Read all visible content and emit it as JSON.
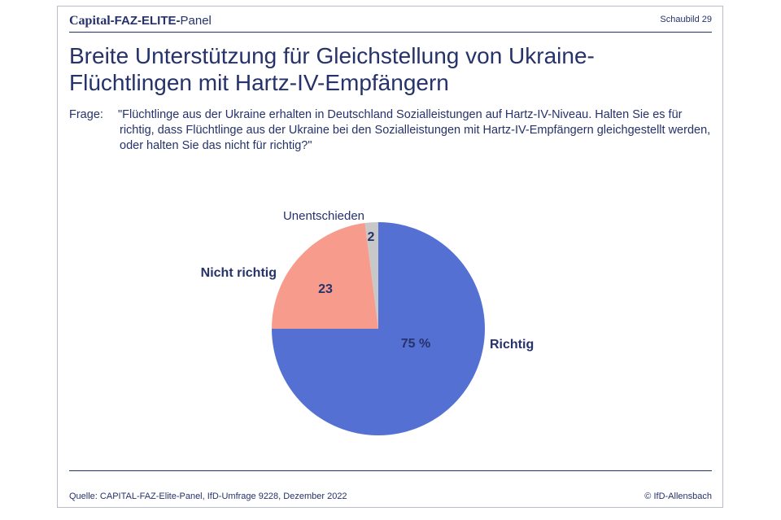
{
  "header": {
    "brand_capital": "Capital",
    "brand_faz": "-FAZ-ELITE-",
    "brand_panel": "Panel",
    "slide_number": "Schaubild 29"
  },
  "title": {
    "line1": "Breite Unterstützung für Gleichstellung von Ukraine-",
    "line2": "Flüchtlingen mit Hartz-IV-Empfängern"
  },
  "question": {
    "prefix": "Frage:",
    "text": "\"Flüchtlinge aus der Ukraine erhalten in Deutschland Sozialleistungen auf Hartz-IV-Niveau. Halten Sie es für richtig, dass Flüchtlinge aus der Ukraine bei den Sozialleistungen mit Hartz-IV-Empfängern gleichgestellt werden, oder halten Sie das nicht für richtig?\""
  },
  "chart_data": {
    "type": "pie",
    "unit": "%",
    "slices": [
      {
        "label": "Richtig",
        "value": 75,
        "value_label": "75 %",
        "color": "#5470d3"
      },
      {
        "label": "Nicht richtig",
        "value": 23,
        "value_label": "23",
        "color": "#f79c8d"
      },
      {
        "label": "Unentschieden",
        "value": 2,
        "value_label": "2",
        "color": "#c8c8c8"
      }
    ]
  },
  "footer": {
    "source": "Quelle: CAPITAL-FAZ-Elite-Panel, IfD-Umfrage 9228, Dezember 2022",
    "copyright": "© IfD-Allensbach"
  }
}
